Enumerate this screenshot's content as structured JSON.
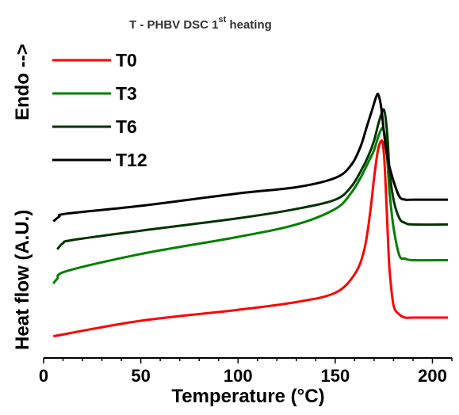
{
  "chart_data": {
    "type": "line",
    "title": "T - PHBV DSC 1",
    "title_superscript": "st",
    "title_suffix": " heating",
    "xlabel": "Temperature (°C)",
    "ylabel": "Heat flow (A.U.)",
    "ylabel_annotation": "Endo -->",
    "xlim": [
      0,
      210
    ],
    "ylim": [
      0,
      100
    ],
    "xticks": [
      0,
      50,
      100,
      150,
      200
    ],
    "xtick_labels": [
      "0",
      "50",
      "100",
      "150",
      "200"
    ],
    "grid": false,
    "legend_position": "top-left",
    "series": [
      {
        "name": "T0",
        "color": "#ff0000",
        "x": [
          5,
          50,
          100,
          130,
          150,
          160,
          165,
          168,
          170,
          172,
          174,
          175,
          176,
          177,
          178,
          180,
          183,
          186,
          190,
          208
        ],
        "y": [
          7,
          12,
          15.5,
          18,
          21,
          27,
          35,
          47,
          58,
          67,
          70,
          66,
          55,
          40,
          28,
          17,
          14,
          13,
          13,
          13
        ]
      },
      {
        "name": "T3",
        "color": "#008000",
        "x": [
          5,
          7,
          12,
          50,
          100,
          130,
          150,
          158,
          163,
          167,
          170,
          172,
          174,
          175,
          176,
          177,
          178,
          180,
          183,
          186,
          190,
          208
        ],
        "y": [
          24,
          25.5,
          28,
          33.5,
          39,
          43,
          48,
          53,
          58,
          63,
          67,
          71,
          74,
          73,
          70,
          62,
          53,
          42,
          33,
          32,
          31.5,
          31.5
        ]
      },
      {
        "name": "T6",
        "color": "#003300",
        "x": [
          7,
          10,
          15,
          50,
          100,
          130,
          150,
          158,
          163,
          167,
          170,
          172,
          174,
          175,
          176,
          177,
          178,
          180,
          183,
          186,
          190,
          208
        ],
        "y": [
          35,
          37,
          38,
          41,
          45,
          48,
          51,
          55,
          60,
          65,
          70,
          75,
          79,
          80,
          77,
          70,
          60,
          51,
          45,
          43.5,
          43,
          43
        ]
      },
      {
        "name": "T12",
        "color": "#000000",
        "x": [
          5,
          8,
          12,
          50,
          100,
          130,
          150,
          158,
          163,
          166,
          169,
          171,
          172,
          173,
          174,
          175,
          177,
          180,
          183,
          186,
          190,
          208
        ],
        "y": [
          44,
          45.5,
          46.5,
          49,
          53,
          55,
          58,
          62,
          68,
          74,
          80,
          84,
          85,
          83,
          79,
          73,
          64,
          57,
          52,
          51,
          51,
          51
        ]
      }
    ]
  }
}
